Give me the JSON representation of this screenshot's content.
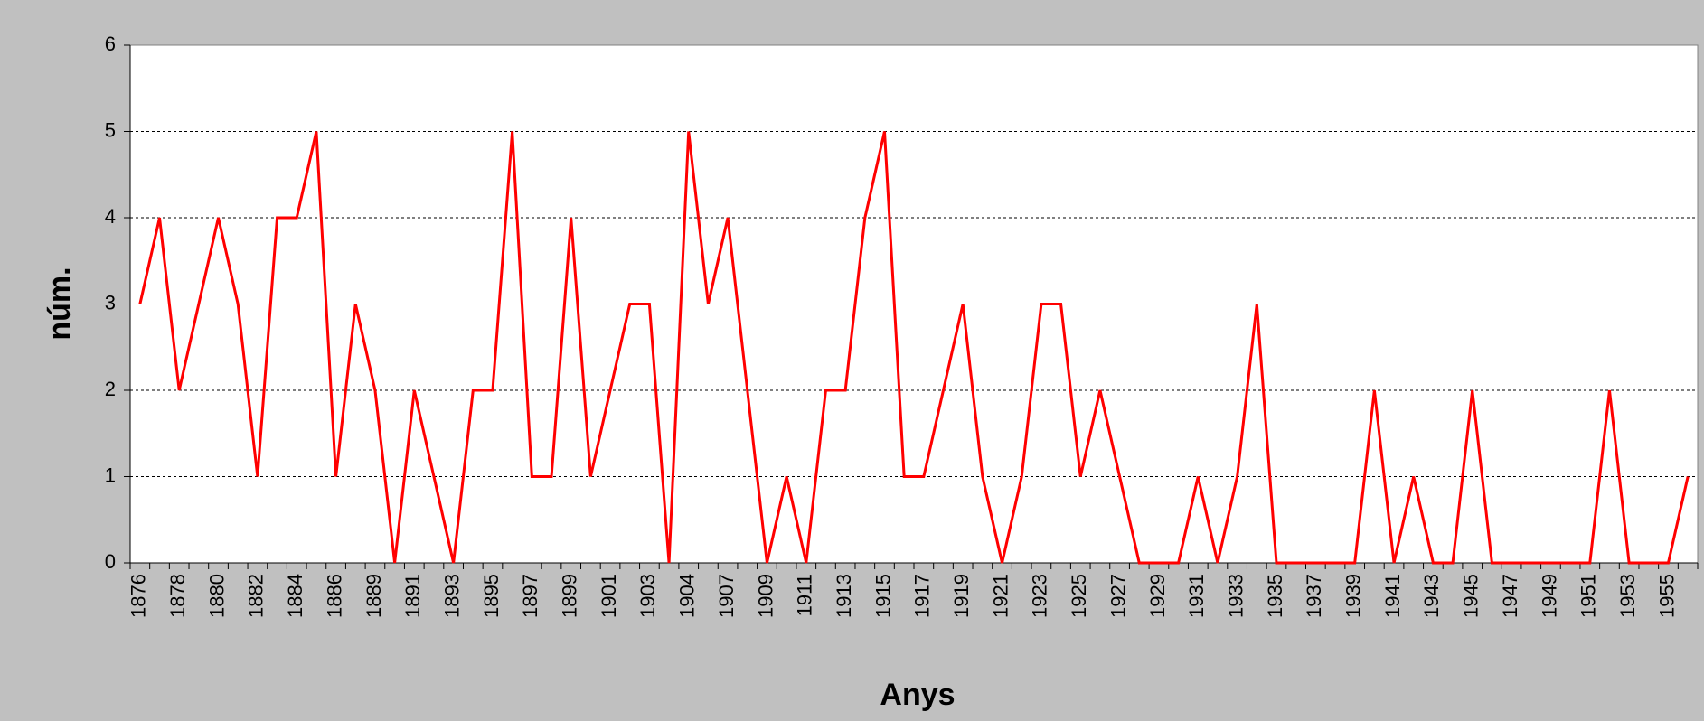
{
  "chart_data": {
    "type": "line",
    "x_label": "Anys",
    "y_label": "núm.",
    "categories": [
      "1876",
      null,
      "1878",
      null,
      "1880",
      null,
      "1882",
      null,
      "1884",
      null,
      "1886",
      null,
      "1889",
      null,
      "1891",
      null,
      "1893",
      null,
      "1895",
      null,
      "1897",
      null,
      "1899",
      null,
      "1901",
      null,
      "1903",
      null,
      "1904",
      null,
      "1907",
      null,
      "1909",
      null,
      "1911",
      null,
      "1913",
      null,
      "1915",
      null,
      "1917",
      null,
      "1919",
      null,
      "1921",
      null,
      "1923",
      null,
      "1925",
      null,
      "1927",
      null,
      "1929",
      null,
      "1931",
      null,
      "1933",
      null,
      "1935",
      null,
      "1937",
      null,
      "1939",
      null,
      "1941",
      null,
      "1943",
      null,
      "1945",
      null,
      "1947",
      null,
      "1949",
      null,
      "1951",
      null,
      "1953",
      null,
      "1955",
      null
    ],
    "values": [
      3,
      4,
      2,
      3,
      4,
      3,
      1,
      4,
      4,
      5,
      1,
      3,
      2,
      0,
      2,
      1,
      0,
      2,
      2,
      5,
      1,
      1,
      4,
      1,
      2,
      3,
      3,
      0,
      5,
      3,
      4,
      2,
      0,
      1,
      0,
      2,
      2,
      4,
      5,
      1,
      1,
      2,
      3,
      1,
      0,
      1,
      3,
      3,
      1,
      2,
      1,
      0,
      0,
      0,
      1,
      0,
      1,
      3,
      0,
      0,
      0,
      0,
      0,
      2,
      0,
      1,
      0,
      0,
      2,
      0,
      0,
      0,
      0,
      0,
      0,
      2,
      0,
      0,
      0,
      1
    ],
    "color": "#ff0000",
    "ylim": [
      0,
      6
    ],
    "yticks": [
      0,
      1,
      2,
      3,
      4,
      5,
      6
    ],
    "grid": true
  }
}
